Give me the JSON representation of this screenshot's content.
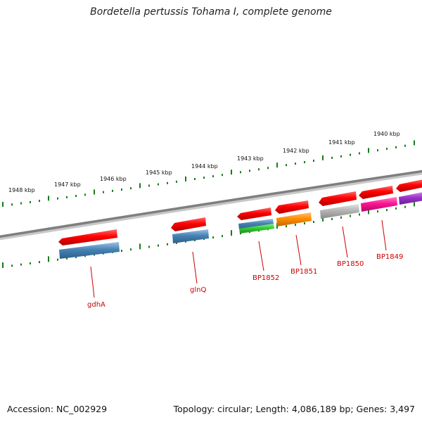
{
  "title": "Bordetella pertussis Tohama I, complete genome",
  "footer": {
    "accession": "Accession: NC_002929",
    "topology": "Topology: circular; Length: 4,086,189 bp; Genes: 3,497"
  },
  "scale_labels": [
    "1948 kbp",
    "1947 kbp",
    "1946 kbp",
    "1945 kbp",
    "1944 kbp",
    "1943 kbp",
    "1942 kbp",
    "1941 kbp",
    "1940 kbp"
  ],
  "genes": [
    {
      "name": "gdhA",
      "color": "#4682b4"
    },
    {
      "name": "glnQ",
      "color": "#4682b4"
    },
    {
      "name": "BP1852",
      "color": "#4682b4"
    },
    {
      "name": "BP1851",
      "color": "#ff8c00"
    },
    {
      "name": "BP1850",
      "color": "#b4b4b4"
    },
    {
      "name": "BP1849",
      "color": "#ff1493"
    }
  ],
  "colors": {
    "backbone": "#7f7f7f",
    "tick": "#1a7a1a",
    "forward_strand": "#ff0000",
    "label": "#cc0000"
  }
}
